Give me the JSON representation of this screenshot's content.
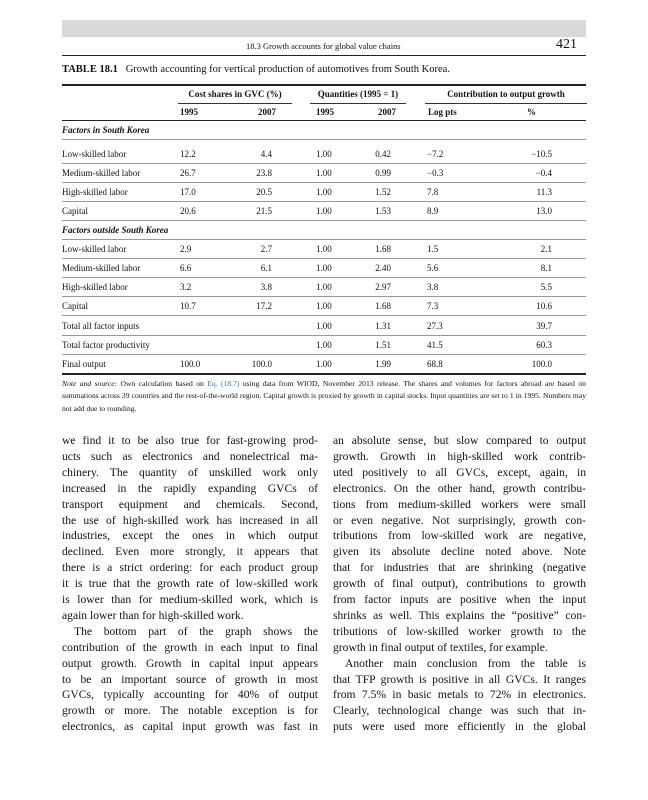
{
  "header": {
    "section": "18.3 Growth accounts for global value chains",
    "page": "421"
  },
  "table": {
    "label": "TABLE 18.1",
    "title": "Growth accounting for vertical production of automotives from South Korea.",
    "group_headers": [
      "Cost shares in GVC (%)",
      "Quantities (1995 = 1)",
      "Contribution to output growth"
    ],
    "column_headers": [
      "1995",
      "2007",
      "1995",
      "2007",
      "Log pts",
      "%"
    ],
    "sections": [
      {
        "title": "Factors in South Korea",
        "rows": [
          [
            "Low-skilled labor",
            "12.2",
            "4.4",
            "1.00",
            "0.42",
            "−7.2",
            "−10.5"
          ],
          [
            "Medium-skilled labor",
            "26.7",
            "23.8",
            "1.00",
            "0.99",
            "−0.3",
            "−0.4"
          ],
          [
            "High-skilled labor",
            "17.0",
            "20.5",
            "1.00",
            "1.52",
            "7.8",
            "11.3"
          ],
          [
            "Capital",
            "20.6",
            "21.5",
            "1.00",
            "1.53",
            "8.9",
            "13.0"
          ]
        ]
      },
      {
        "title": "Factors outside South Korea",
        "rows": [
          [
            "Low-skilled labor",
            "2.9",
            "2.7",
            "1.00",
            "1.68",
            "1.5",
            "2.1"
          ],
          [
            "Medium-skilled labor",
            "6.6",
            "6.1",
            "1.00",
            "2.40",
            "5.6",
            "8.1"
          ],
          [
            "High-skilled labor",
            "3.2",
            "3.8",
            "1.00",
            "2.97",
            "3.8",
            "5.5"
          ],
          [
            "Capital",
            "10.7",
            "17.2",
            "1.00",
            "1.68",
            "7.3",
            "10.6"
          ],
          [
            "Total all factor inputs",
            null,
            null,
            "1.00",
            "1.31",
            "27.3",
            "39.7"
          ],
          [
            "Total factor productivity",
            null,
            null,
            "1.00",
            "1.51",
            "41.5",
            "60.3"
          ],
          [
            "Final output",
            "100.0",
            "100.0",
            "1.00",
            "1.99",
            "68.8",
            "100.0"
          ]
        ]
      }
    ],
    "note": {
      "label": "Note and source:",
      "before_link": "Own calculation based on",
      "link": "Eq. (18.7)",
      "after_link": "using data from WIOD, November 2013 release. The shares and volumes for factors abroad are based on summations across 39 countries and the rest-of-the-world region. Capital growth is proxied by growth in capital stocks. Input quantities are set to 1 in 1995. Numbers may not add due to rounding."
    }
  },
  "body": {
    "columns": [
      {
        "paragraphs": [
          {
            "lines": [
              "we find it to be also true for fast-growing prod-",
              "ucts such as electronics and nonelectrical ma-",
              "chinery. The quantity of unskilled work only",
              "increased in the rapidly expanding GVCs of",
              "transport equipment and chemicals. Second,",
              "the use of high-skilled work has increased in all",
              "industries, except the ones in which output",
              "declined. Even more strongly, it appears that",
              "there is a strict ordering: for each product group",
              "it is true that the growth rate of low-skilled work",
              "is lower than for medium-skilled work, which is",
              "again lower than for high-skilled work."
            ]
          },
          {
            "lines": [
              "The bottom part of the graph shows the",
              "contribution of the growth in each input to final",
              "output growth. Growth in capital input appears",
              "to be an important source of growth in most",
              "GVCs, typically accounting for 40% of output",
              "growth or more. The notable exception is for",
              "electronics, as capital input growth was fast in"
            ]
          }
        ]
      },
      {
        "paragraphs": [
          {
            "lines": [
              "an absolute sense, but slow compared to output",
              "growth. Growth in high-skilled work contrib-",
              "uted positively to all GVCs, except, again, in",
              "electronics. On the other hand, growth contribu-",
              "tions from medium-skilled workers were small",
              "or even negative. Not surprisingly, growth con-",
              "tributions from low-skilled work are negative,",
              "given its absolute decline noted above. Note",
              "that for industries that are shrinking (negative",
              "growth of final output), contributions to growth",
              "from factor inputs are positive when the input",
              "shrinks as well. This explains the “positive” con-",
              "tributions of low-skilled worker growth to the",
              "growth in final output of textiles, for example."
            ]
          },
          {
            "lines": [
              "Another main conclusion from the table is",
              "that TFP growth is positive in all GVCs. It ranges",
              "from 7.5% in basic metals to 72% in electronics.",
              "Clearly, technological change was such that in-",
              "puts were used more efficiently in the global"
            ]
          }
        ]
      }
    ]
  }
}
